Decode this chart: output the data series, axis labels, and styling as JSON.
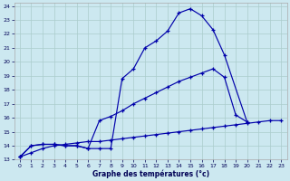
{
  "bg_color": "#cce8f0",
  "grid_color": "#aacccc",
  "line_color": "#0000aa",
  "xlabel": "Graphe des températures (°c)",
  "xlim": [
    -0.5,
    23.5
  ],
  "ylim": [
    13,
    24.2
  ],
  "yticks": [
    13,
    14,
    15,
    16,
    17,
    18,
    19,
    20,
    21,
    22,
    23,
    24
  ],
  "xticks": [
    0,
    1,
    2,
    3,
    4,
    5,
    6,
    7,
    8,
    9,
    10,
    11,
    12,
    13,
    14,
    15,
    16,
    17,
    18,
    19,
    20,
    21,
    22,
    23
  ],
  "curve1_x": [
    0,
    1,
    2,
    3,
    4,
    5,
    6,
    7,
    8,
    9,
    10,
    11,
    12,
    13,
    14,
    15,
    16,
    17,
    18,
    20
  ],
  "curve1_y": [
    13.2,
    14.0,
    14.1,
    14.1,
    14.0,
    14.0,
    13.8,
    13.8,
    13.8,
    18.8,
    19.5,
    21.0,
    21.5,
    22.2,
    23.5,
    23.8,
    23.3,
    22.3,
    20.5,
    15.7
  ],
  "curve2_x": [
    0,
    1,
    2,
    3,
    4,
    5,
    6,
    7,
    8,
    9,
    10,
    11,
    12,
    13,
    14,
    15,
    16,
    17,
    18,
    19,
    20
  ],
  "curve2_y": [
    13.2,
    14.0,
    14.1,
    14.1,
    14.0,
    14.0,
    13.8,
    15.8,
    16.1,
    16.5,
    17.0,
    17.4,
    17.8,
    18.2,
    18.6,
    18.9,
    19.2,
    19.5,
    18.9,
    16.2,
    15.7
  ],
  "curve3_x": [
    0,
    1,
    2,
    3,
    4,
    5,
    6,
    7,
    8,
    9,
    10,
    11,
    12,
    13,
    14,
    15,
    16,
    17,
    18,
    19,
    20,
    21,
    22,
    23
  ],
  "curve3_y": [
    13.2,
    13.5,
    13.8,
    14.0,
    14.1,
    14.2,
    14.3,
    14.3,
    14.4,
    14.5,
    14.6,
    14.7,
    14.8,
    14.9,
    15.0,
    15.1,
    15.2,
    15.3,
    15.4,
    15.5,
    15.6,
    15.7,
    15.8,
    15.8
  ]
}
